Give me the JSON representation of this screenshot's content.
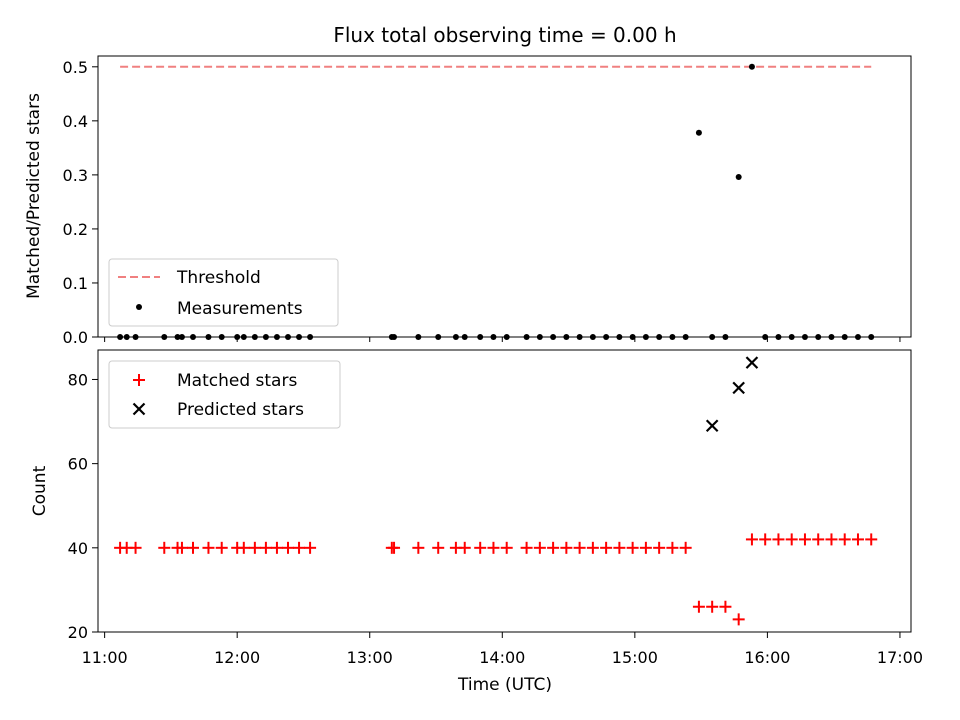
{
  "title": "Flux total observing time = 0.00 h",
  "chart_data": [
    {
      "type": "scatter",
      "ylabel": "Matched/Predicted stars",
      "ylim": [
        0,
        0.52
      ],
      "yticks": [
        0.0,
        0.1,
        0.2,
        0.3,
        0.4,
        0.5
      ],
      "ytick_labels": [
        "0.0",
        "0.1",
        "0.2",
        "0.3",
        "0.4",
        "0.5"
      ],
      "legend_position": "lower-left",
      "threshold": {
        "name": "Threshold",
        "value": 0.5,
        "x_start": "11:07",
        "x_end": "16:47",
        "color": "#f08080"
      },
      "series": [
        {
          "name": "Measurements",
          "marker": "dot",
          "color": "#000000",
          "x": [
            "11:07",
            "11:10",
            "11:14",
            "11:27",
            "11:33",
            "11:35",
            "11:40",
            "11:47",
            "11:53",
            "12:00",
            "12:03",
            "12:08",
            "12:13",
            "12:18",
            "12:23",
            "12:28",
            "12:33",
            "13:10",
            "13:11",
            "13:22",
            "13:31",
            "13:39",
            "13:43",
            "13:50",
            "13:56",
            "14:02",
            "14:11",
            "14:17",
            "14:23",
            "14:29",
            "14:35",
            "14:41",
            "14:47",
            "14:53",
            "14:59",
            "15:05",
            "15:11",
            "15:17",
            "15:23",
            "15:29",
            "15:35",
            "15:41",
            "15:47",
            "15:53",
            "15:59",
            "16:05",
            "16:11",
            "16:17",
            "16:23",
            "16:29",
            "16:35",
            "16:41",
            "16:47"
          ],
          "y": [
            0,
            0,
            0,
            0,
            0,
            0,
            0,
            0,
            0,
            0,
            0,
            0,
            0,
            0,
            0,
            0,
            0,
            0,
            0,
            0,
            0,
            0,
            0,
            0,
            0,
            0,
            0,
            0,
            0,
            0,
            0,
            0,
            0,
            0,
            0,
            0,
            0,
            0,
            0,
            0.378,
            0,
            0,
            0.296,
            0.5,
            0,
            0,
            0,
            0,
            0,
            0,
            0,
            0,
            0
          ]
        }
      ]
    },
    {
      "type": "scatter",
      "xlabel": "Time (UTC)",
      "ylabel": "Count",
      "ylim": [
        20,
        87
      ],
      "yticks": [
        20,
        40,
        60,
        80
      ],
      "ytick_labels": [
        "20",
        "40",
        "60",
        "80"
      ],
      "xlim": [
        "10:57",
        "17:05"
      ],
      "xticks": [
        "11:00",
        "12:00",
        "13:00",
        "14:00",
        "15:00",
        "16:00",
        "17:00"
      ],
      "legend_position": "upper-left",
      "series": [
        {
          "name": "Matched stars",
          "marker": "plus",
          "color": "#ff0000",
          "x": [
            "11:07",
            "11:10",
            "11:14",
            "11:27",
            "11:33",
            "11:35",
            "11:40",
            "11:47",
            "11:53",
            "12:00",
            "12:03",
            "12:08",
            "12:13",
            "12:18",
            "12:23",
            "12:28",
            "12:33",
            "13:10",
            "13:11",
            "13:22",
            "13:31",
            "13:39",
            "13:43",
            "13:50",
            "13:56",
            "14:02",
            "14:11",
            "14:17",
            "14:23",
            "14:29",
            "14:35",
            "14:41",
            "14:47",
            "14:53",
            "14:59",
            "15:05",
            "15:11",
            "15:17",
            "15:23",
            "15:29",
            "15:35",
            "15:41",
            "15:47",
            "15:53",
            "15:59",
            "16:05",
            "16:11",
            "16:17",
            "16:23",
            "16:29",
            "16:35",
            "16:41",
            "16:47"
          ],
          "y": [
            40,
            40,
            40,
            40,
            40,
            40,
            40,
            40,
            40,
            40,
            40,
            40,
            40,
            40,
            40,
            40,
            40,
            40,
            40,
            40,
            40,
            40,
            40,
            40,
            40,
            40,
            40,
            40,
            40,
            40,
            40,
            40,
            40,
            40,
            40,
            40,
            40,
            40,
            40,
            26,
            26,
            26,
            23,
            42,
            42,
            42,
            42,
            42,
            42,
            42,
            42,
            42,
            42
          ]
        },
        {
          "name": "Predicted stars",
          "marker": "x",
          "color": "#000000",
          "x": [
            "15:35",
            "15:47",
            "15:53"
          ],
          "y": [
            69,
            78,
            84
          ]
        }
      ]
    }
  ]
}
